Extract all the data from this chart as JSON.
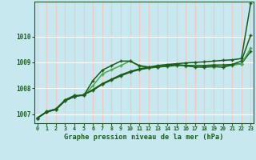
{
  "background_color": "#c8e8f0",
  "grid_color_h": "#ffffff",
  "grid_color_v": "#f0c8c8",
  "line_color_dark": "#1a5c1a",
  "line_color_light": "#4aaa4a",
  "title": "Graphe pression niveau de la mer (hPa)",
  "xlim": [
    -0.3,
    23.3
  ],
  "ylim": [
    1006.65,
    1011.35
  ],
  "yticks": [
    1007,
    1008,
    1009,
    1010
  ],
  "xticks": [
    0,
    1,
    2,
    3,
    4,
    5,
    6,
    7,
    8,
    9,
    10,
    11,
    12,
    13,
    14,
    15,
    16,
    17,
    18,
    19,
    20,
    21,
    22,
    23
  ],
  "series_a": [
    1006.85,
    1007.1,
    1007.2,
    1007.55,
    1007.72,
    1007.72,
    1008.3,
    1008.7,
    1008.88,
    1009.05,
    1009.05,
    1008.88,
    1008.82,
    1008.82,
    1008.88,
    1008.92,
    1008.88,
    1008.82,
    1008.82,
    1008.85,
    1008.82,
    1008.92,
    1009.05,
    1010.05
  ],
  "series_b": [
    1006.85,
    1007.1,
    1007.2,
    1007.55,
    1007.72,
    1007.72,
    1008.1,
    1008.55,
    1008.72,
    1008.88,
    1009.05,
    1008.85,
    1008.82,
    1008.82,
    1008.88,
    1008.92,
    1008.85,
    1008.85,
    1008.82,
    1008.82,
    1008.82,
    1008.88,
    1008.95,
    1009.55
  ],
  "series_c": [
    1006.85,
    1007.08,
    1007.18,
    1007.52,
    1007.68,
    1007.75,
    1007.95,
    1008.18,
    1008.35,
    1008.52,
    1008.65,
    1008.75,
    1008.82,
    1008.88,
    1008.92,
    1008.95,
    1008.98,
    1009.0,
    1009.02,
    1009.05,
    1009.08,
    1009.1,
    1009.15,
    1011.28
  ],
  "series_d": [
    1006.85,
    1007.08,
    1007.18,
    1007.52,
    1007.68,
    1007.75,
    1007.92,
    1008.15,
    1008.32,
    1008.48,
    1008.62,
    1008.72,
    1008.78,
    1008.82,
    1008.85,
    1008.88,
    1008.88,
    1008.88,
    1008.88,
    1008.9,
    1008.9,
    1008.92,
    1008.95,
    1009.42
  ]
}
